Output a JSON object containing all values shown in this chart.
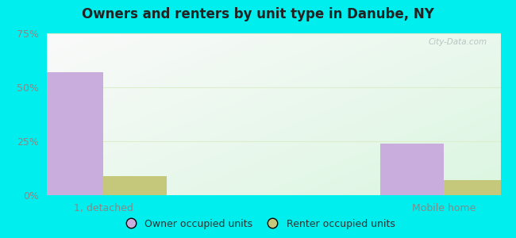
{
  "title": "Owners and renters by unit type in Danube, NY",
  "categories": [
    "1, detached",
    "Mobile home"
  ],
  "owner_values": [
    57,
    24
  ],
  "renter_values": [
    9,
    7
  ],
  "owner_color": "#c9aedd",
  "renter_color": "#c5c87a",
  "ylim": [
    0,
    75
  ],
  "yticks": [
    0,
    25,
    50,
    75
  ],
  "ytick_labels": [
    "0%",
    "25%",
    "50%",
    "75%"
  ],
  "outer_bg": "#00eeee",
  "watermark": "City-Data.com",
  "legend_owner": "Owner occupied units",
  "legend_renter": "Renter occupied units",
  "bar_width": 0.28,
  "x_positions": [
    0.25,
    1.75
  ],
  "xlim": [
    0.0,
    2.0
  ],
  "grid_color": "#ddeecc",
  "tick_color": "#888888"
}
